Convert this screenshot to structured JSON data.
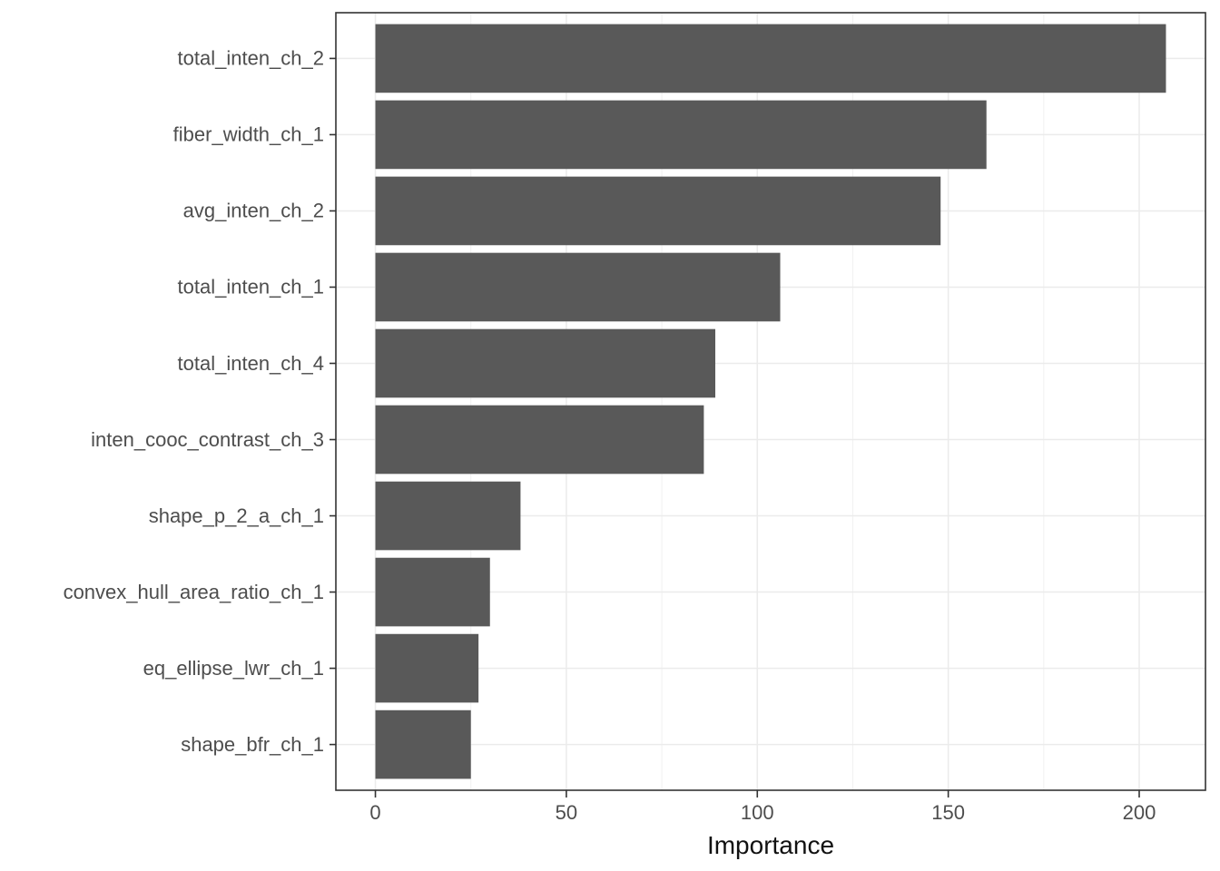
{
  "chart_data": {
    "type": "bar",
    "orientation": "horizontal",
    "title": "",
    "xlabel": "Importance",
    "ylabel": "",
    "categories": [
      "total_inten_ch_2",
      "fiber_width_ch_1",
      "avg_inten_ch_2",
      "total_inten_ch_1",
      "total_inten_ch_4",
      "inten_cooc_contrast_ch_3",
      "shape_p_2_a_ch_1",
      "convex_hull_area_ratio_ch_1",
      "eq_ellipse_lwr_ch_1",
      "shape_bfr_ch_1"
    ],
    "values": [
      207,
      160,
      148,
      106,
      89,
      86,
      38,
      30,
      27,
      25
    ],
    "x_ticks": [
      0,
      50,
      100,
      150,
      200
    ],
    "x_tick_labels": [
      "0",
      "50",
      "100",
      "150",
      "200"
    ],
    "x_minor_ticks": [
      25,
      75,
      125,
      175
    ],
    "xlim": [
      0,
      207
    ],
    "grid": true,
    "legend": false,
    "bar_width_fraction": 0.9,
    "colors": {
      "bar_fill": "#595959",
      "panel_border": "#333333",
      "panel_background": "#ffffff",
      "grid_major": "#ebebeb",
      "grid_minor": "#f1f1f1",
      "tick_mark": "#333333",
      "axis_text": "#4d4d4d",
      "axis_title": "#111111"
    }
  }
}
